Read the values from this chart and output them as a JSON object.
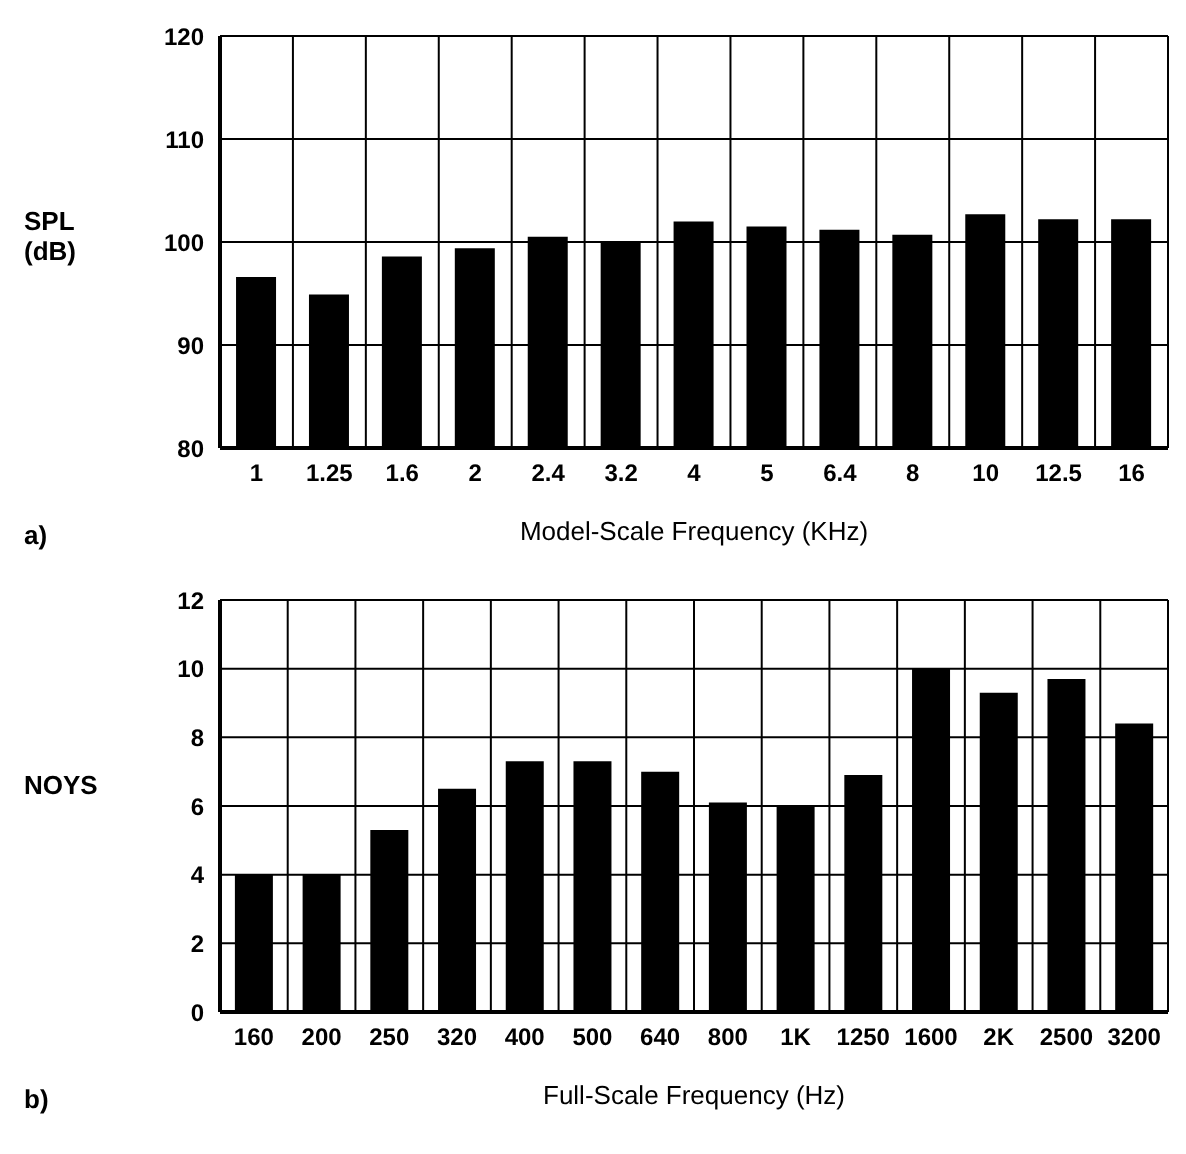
{
  "chart_data": [
    {
      "type": "bar",
      "xlabel": "Model-Scale Frequency (KHz)",
      "ylabel": "SPL (dB)",
      "annotations": [
        "a)"
      ],
      "categories": [
        "1",
        "1.25",
        "1.6",
        "2",
        "2.4",
        "3.2",
        "4",
        "5",
        "6.4",
        "8",
        "10",
        "12.5",
        "16"
      ],
      "values": [
        96.6,
        94.9,
        98.6,
        99.4,
        100.5,
        100,
        102,
        101.5,
        101.2,
        100.7,
        102.7,
        102.2,
        102.2
      ],
      "color": "#000000",
      "ylim": [
        80,
        120
      ],
      "yticks": [
        80,
        90,
        100,
        110,
        120
      ],
      "grid": true
    },
    {
      "type": "bar",
      "xlabel": "Full-Scale Frequency (Hz)",
      "ylabel": "NOYS",
      "annotations": [
        "b)"
      ],
      "categories": [
        "160",
        "200",
        "250",
        "320",
        "400",
        "500",
        "640",
        "800",
        "1K",
        "1250",
        "1600",
        "2K",
        "2500",
        "3200"
      ],
      "values": [
        4.0,
        4.0,
        5.3,
        6.5,
        7.3,
        7.3,
        7.0,
        6.1,
        6.0,
        6.9,
        10.0,
        9.3,
        9.7,
        8.4
      ],
      "color": "#000000",
      "ylim": [
        0,
        12
      ],
      "yticks": [
        0,
        2,
        4,
        6,
        8,
        10,
        12
      ],
      "grid": true
    }
  ]
}
